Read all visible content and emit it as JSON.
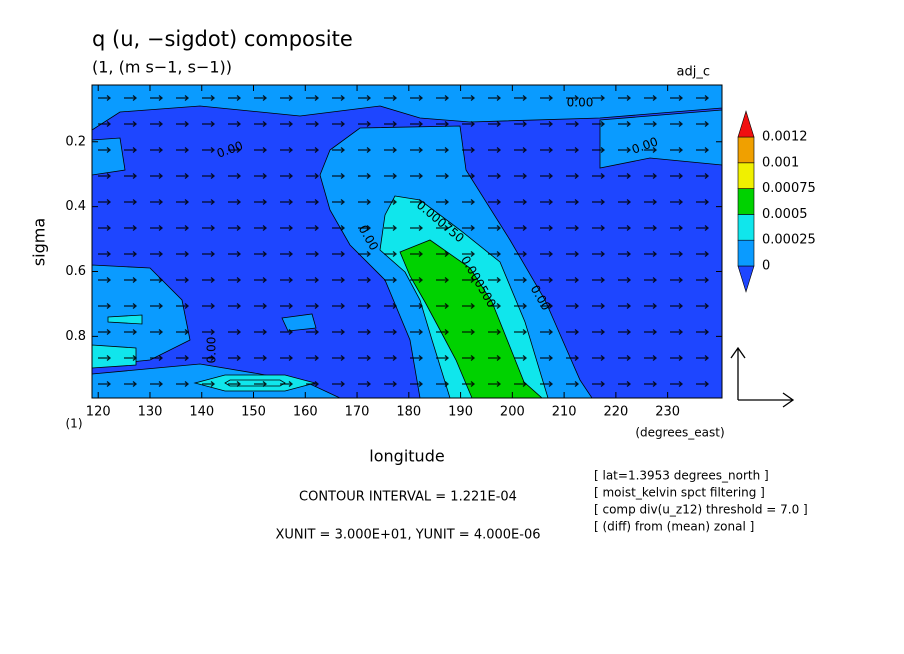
{
  "chart_data": {
    "type": "contour",
    "title": "q (u, −sigdot) composite",
    "subtitle": "(1, (m s−1, s−1))",
    "tag": "adj_c",
    "x_label": "longitude",
    "x_unit_label": "(degrees_east)",
    "y_label": "sigma",
    "corner_label": "(1)",
    "xlim": [
      118.8,
      240.5
    ],
    "xticks": [
      120,
      130,
      140,
      150,
      160,
      170,
      180,
      190,
      200,
      210,
      220,
      230
    ],
    "ylim": [
      0.025,
      0.99
    ],
    "yticks": [
      0.2,
      0.4,
      0.6,
      0.8
    ],
    "y_inverted": true,
    "grid": false,
    "colorbar": {
      "levels": [
        0,
        0.00025,
        0.0005,
        0.00075,
        0.001,
        0.0012
      ],
      "colors": [
        "#1e46ff",
        "#0a9bff",
        "#10e6ec",
        "#00d200",
        "#f0f000",
        "#f0a000",
        "#f01010"
      ]
    },
    "contour_labels": [
      "0.00",
      "0.00",
      "0.00",
      "0.00",
      "0.00",
      "0.00",
      "0.000750",
      "0.000500"
    ],
    "contour_interval": "CONTOUR INTERVAL = 1.221E-04",
    "vector_units": "XUNIT = 3.000E+01, YUNIT = 4.000E-06",
    "notes": [
      "[ lat=1.3953 degrees_north ]",
      "[ moist_kelvin spct filtering ]",
      "[ comp div(u_z12) threshold = 7.0 ]",
      "[ (diff) from (mean) zonal ]"
    ]
  }
}
